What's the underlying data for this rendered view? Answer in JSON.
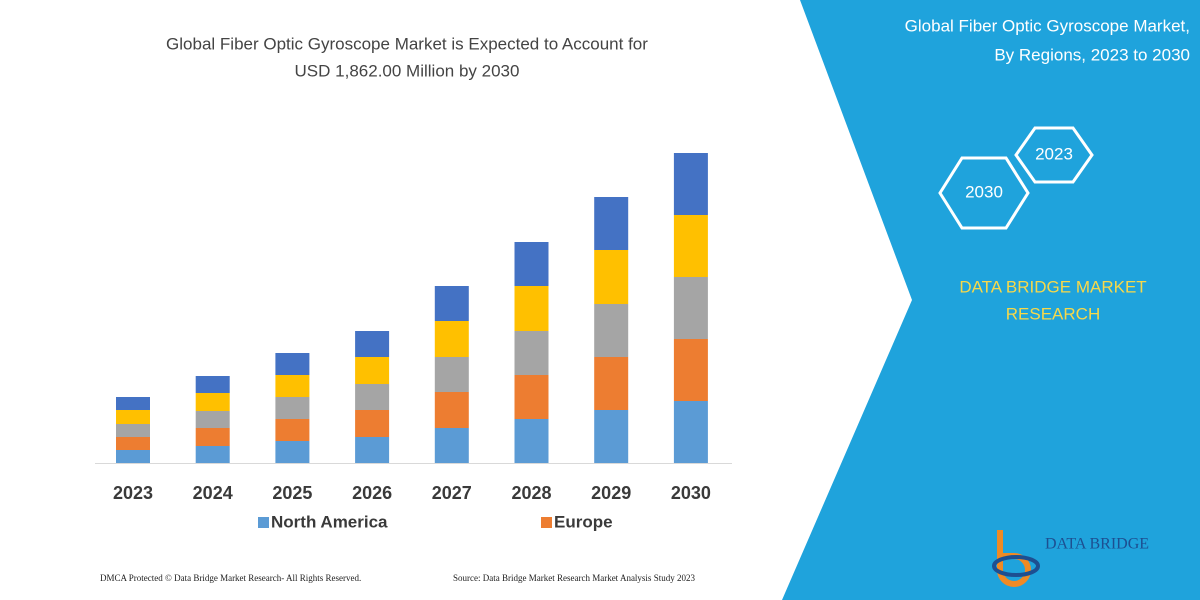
{
  "chart_data": {
    "type": "bar",
    "stacked": true,
    "title": [
      "Global Fiber Optic Gyroscope Market is Expected to Account for",
      "USD 1,862.00 Million by 2030"
    ],
    "categories": [
      "2023",
      "2024",
      "2025",
      "2026",
      "2027",
      "2028",
      "2029",
      "2030"
    ],
    "series": [
      {
        "name": "North America",
        "color": "#5b9bd5",
        "values": [
          13,
          17,
          22,
          26,
          35,
          44,
          53,
          62
        ]
      },
      {
        "name": "Europe",
        "color": "#ed7d31",
        "values": [
          13,
          18,
          22,
          27,
          36,
          44,
          53,
          62
        ]
      },
      {
        "color": "#a5a5a5",
        "values": [
          13,
          17,
          22,
          26,
          35,
          44,
          53,
          62
        ]
      },
      {
        "color": "#ffc000",
        "values": [
          14,
          18,
          22,
          27,
          36,
          45,
          54,
          62
        ]
      },
      {
        "color": "#4472c4",
        "values": [
          13,
          17,
          22,
          26,
          35,
          44,
          53,
          62
        ]
      }
    ]
  },
  "panel": {
    "title": [
      "Global Fiber Optic Gyroscope Market,",
      "By Regions, 2023 to 2030"
    ],
    "badges": [
      "2023",
      "2030"
    ],
    "brand": [
      "DATA BRIDGE MARKET",
      "RESEARCH"
    ],
    "logo": "DATA BRIDGE"
  },
  "footer": {
    "left": "DMCA Protected © Data Bridge Market Research- All Rights Reserved.",
    "right": "Source: Data Bridge Market Research Market Analysis Study 2023"
  }
}
